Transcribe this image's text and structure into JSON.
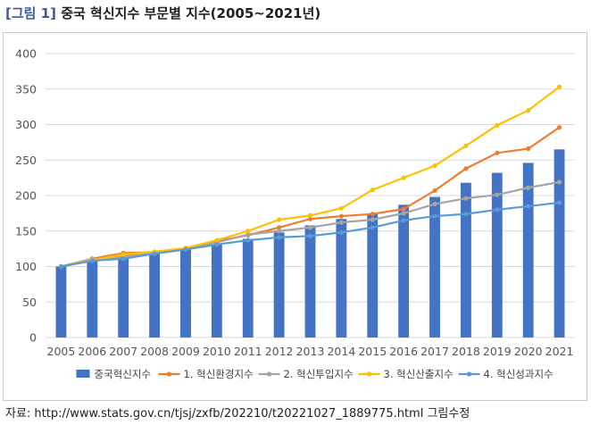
{
  "figure": {
    "tag": "[그림 1]",
    "title": "중국 혁신지수 부문별 지수(2005~2021년)"
  },
  "source": "자료: http://www.stats.gov.cn/tjsj/zxfb/202210/t20221027_1889775.html 그림수정",
  "chart_data": {
    "type": "bar",
    "title": "",
    "xlabel": "",
    "ylabel": "",
    "ylim": [
      0,
      400
    ],
    "yticks": [
      0,
      50,
      100,
      150,
      200,
      250,
      300,
      350,
      400
    ],
    "grid": true,
    "legend": "bottom",
    "categories": [
      "2005",
      "2006",
      "2007",
      "2008",
      "2009",
      "2010",
      "2011",
      "2012",
      "2013",
      "2014",
      "2015",
      "2016",
      "2017",
      "2018",
      "2019",
      "2020",
      "2021"
    ],
    "series": [
      {
        "name": "중국혁신지수",
        "kind": "bar",
        "color": "#4472c4",
        "values": [
          100,
          110,
          113,
          118,
          124,
          131,
          139,
          148,
          158,
          167,
          175,
          187,
          198,
          218,
          232,
          246,
          265
        ]
      },
      {
        "name": "1. 혁신환경지수",
        "kind": "line",
        "color": "#ed7d31",
        "values": [
          100,
          111,
          119,
          120,
          126,
          136,
          144,
          155,
          167,
          171,
          174,
          181,
          207,
          238,
          260,
          266,
          296
        ]
      },
      {
        "name": "2. 혁신투입지수",
        "kind": "line",
        "color": "#a5a5a5",
        "values": [
          100,
          110,
          114,
          120,
          125,
          134,
          145,
          150,
          155,
          162,
          166,
          175,
          188,
          196,
          201,
          211,
          219
        ]
      },
      {
        "name": "3. 혁신산출지수",
        "kind": "line",
        "color": "#ffc000",
        "values": [
          100,
          109,
          117,
          121,
          126,
          137,
          150,
          166,
          172,
          182,
          208,
          225,
          242,
          270,
          299,
          320,
          353
        ]
      },
      {
        "name": "4. 혁신성과지수",
        "kind": "line",
        "color": "#5b9bd5",
        "values": [
          100,
          108,
          111,
          118,
          124,
          131,
          137,
          141,
          143,
          148,
          155,
          165,
          171,
          174,
          180,
          185,
          190
        ]
      }
    ]
  }
}
